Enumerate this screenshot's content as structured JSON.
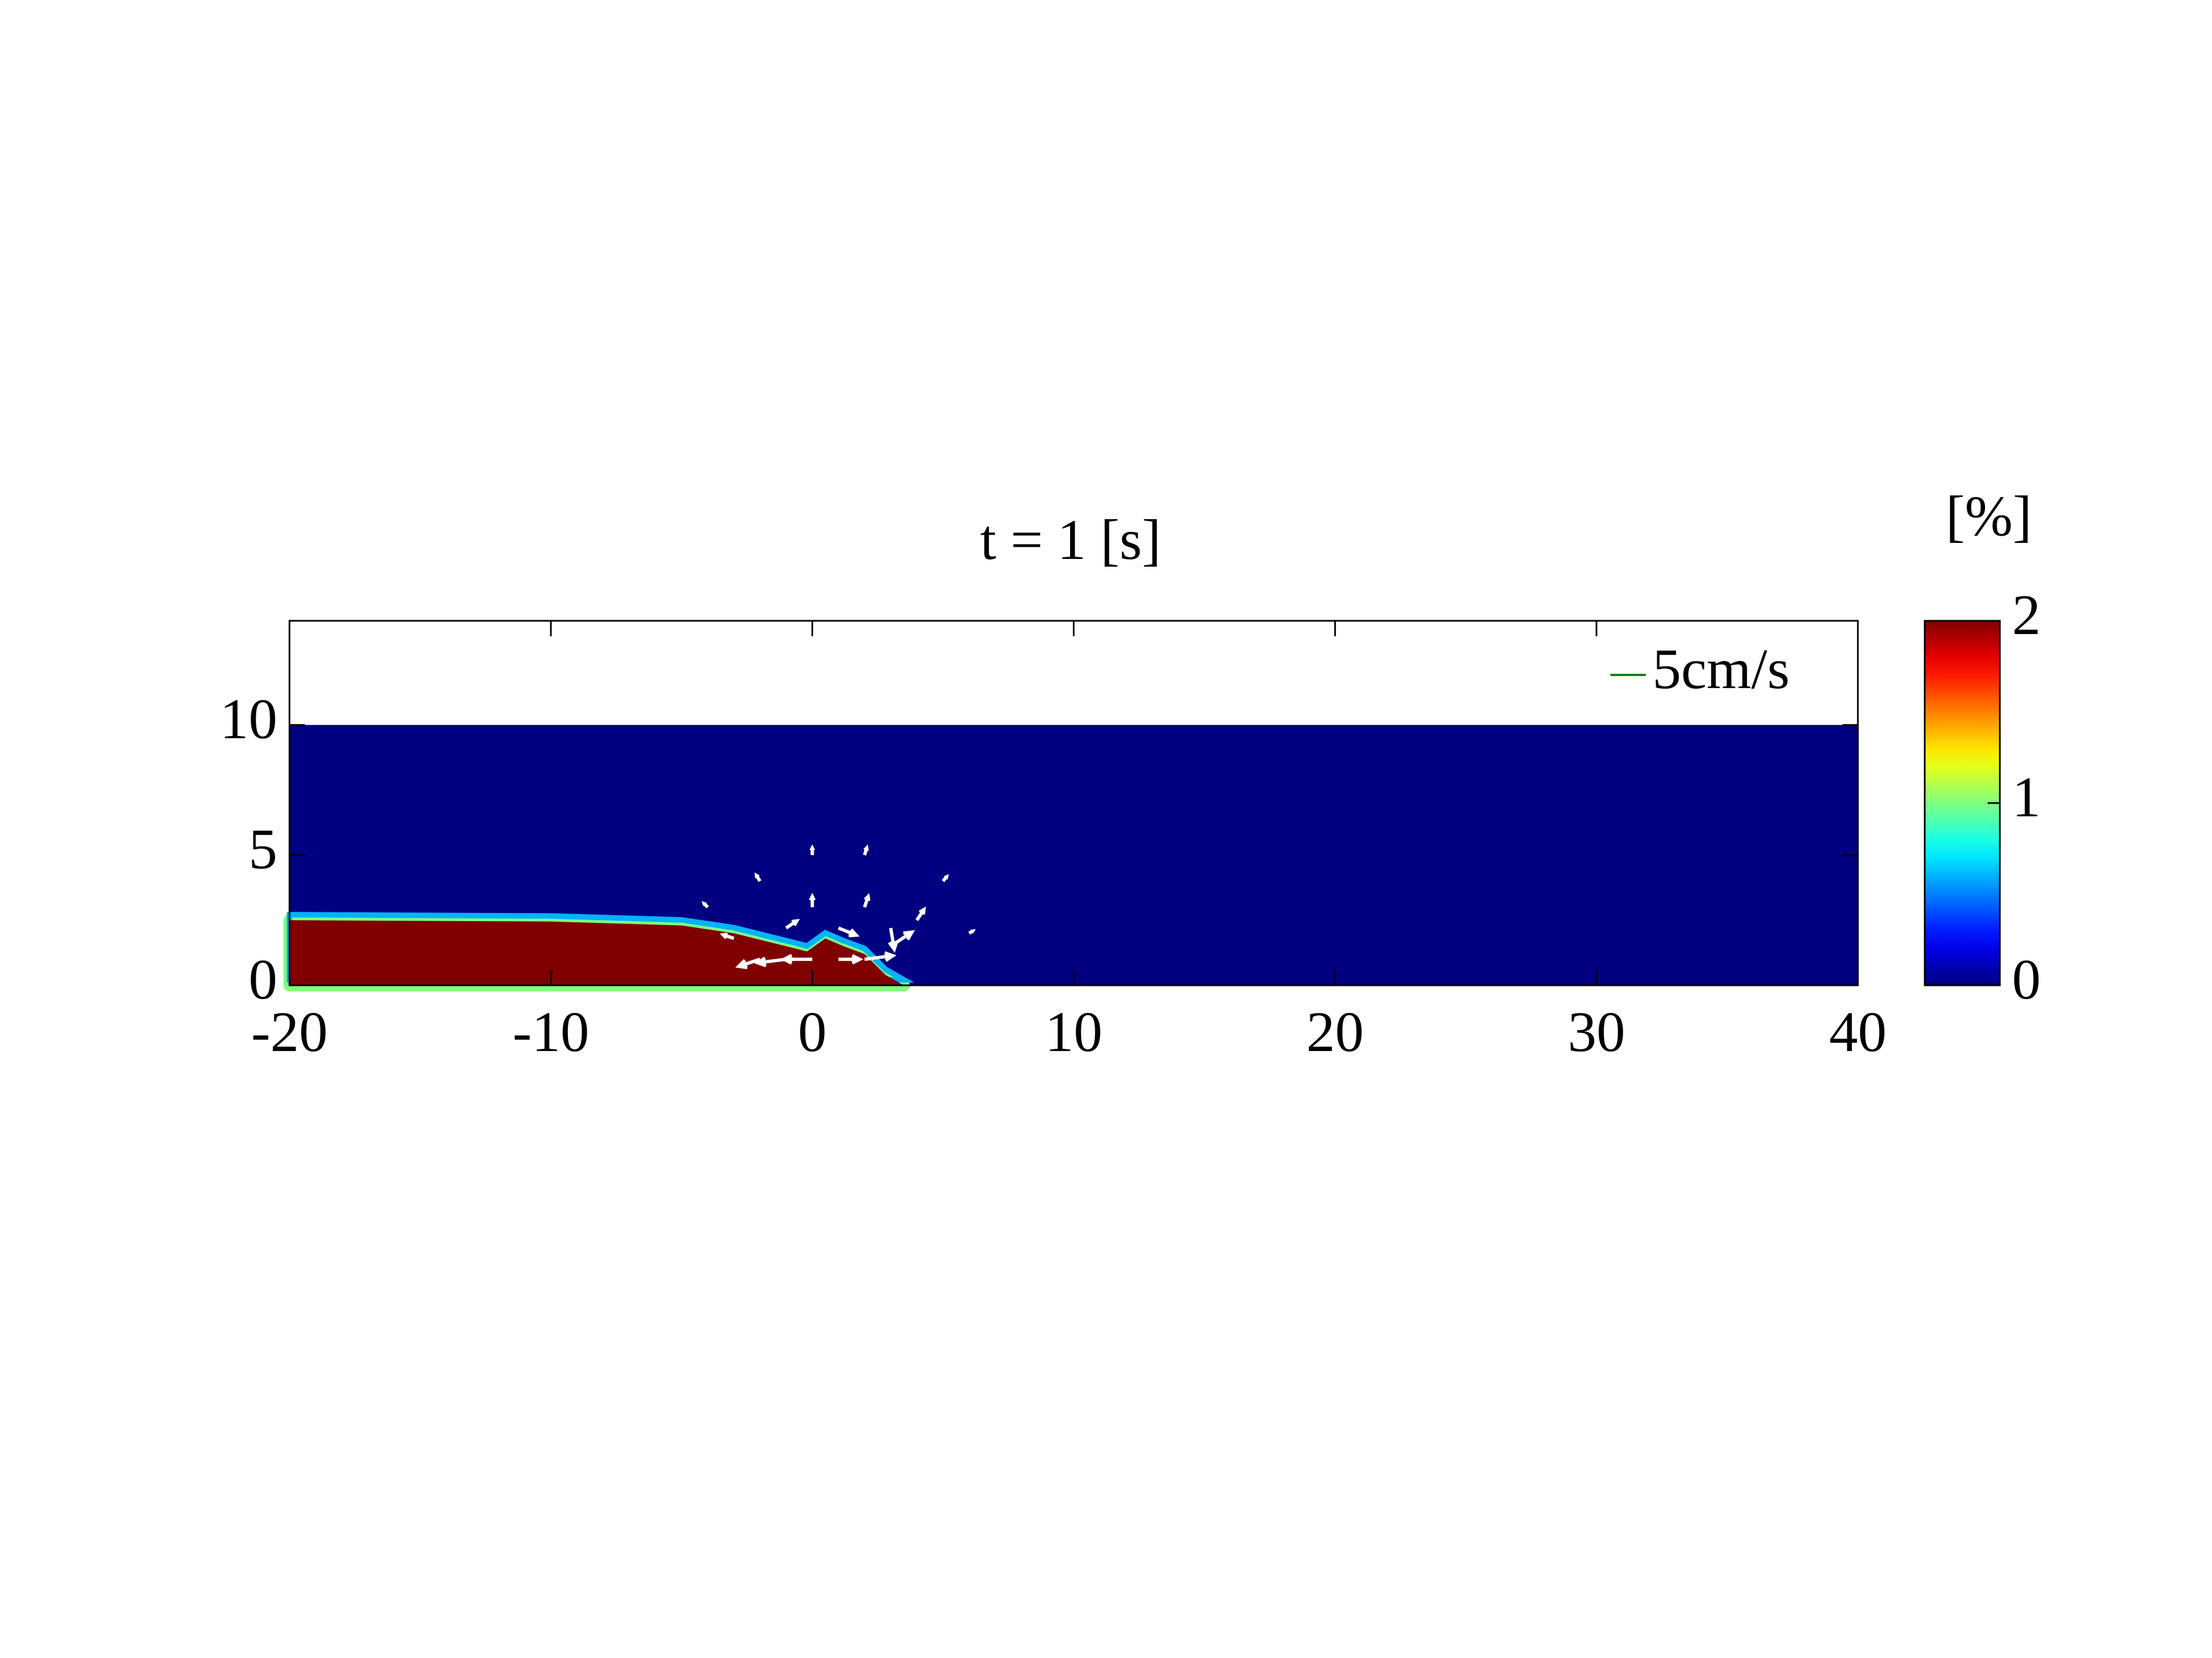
{
  "chart_data": {
    "type": "field",
    "title": "t = 1 [s]",
    "xlim": [
      -20,
      40
    ],
    "xticks": [
      -20,
      -10,
      0,
      10,
      20,
      30,
      40
    ],
    "ylim": [
      0,
      14
    ],
    "yticks": [
      0,
      5,
      10
    ],
    "colormap": "jet",
    "clim": [
      0,
      2
    ],
    "cticks": [
      0,
      1,
      2
    ],
    "clabel": "[%]",
    "ambient": {
      "value": 0,
      "depth": 10
    },
    "current": {
      "value": 2,
      "x": [
        -20,
        -10,
        -5,
        -3,
        -1,
        -0.2,
        0.5,
        1.2,
        2,
        2.8,
        3.5
      ],
      "height": [
        2.5,
        2.45,
        2.3,
        2.0,
        1.5,
        1.3,
        1.8,
        1.5,
        1.2,
        0.4,
        0
      ]
    },
    "quiver_key": {
      "label": "5cm/s",
      "speed": 5,
      "color": "#008000"
    },
    "vectors": {
      "x": [
        -2,
        -1,
        0,
        1,
        2,
        3,
        -3,
        -1,
        1,
        3,
        0,
        2,
        4,
        -2,
        0,
        2,
        5,
        -4,
        6
      ],
      "y": [
        1,
        1,
        1,
        1,
        1,
        1.5,
        1.8,
        2.2,
        2.2,
        2.2,
        3,
        3,
        2.5,
        4,
        5,
        5,
        4,
        3,
        2
      ],
      "u": [
        -3,
        -4,
        -4,
        3,
        4,
        3,
        -1.5,
        1.5,
        2.5,
        0.5,
        0,
        0.5,
        1,
        -0.5,
        0,
        0.3,
        0.5,
        -0.5,
        0.5
      ],
      "v": [
        -1,
        -0.5,
        0,
        0,
        0.5,
        2,
        0.5,
        1,
        -1,
        -3,
        1.5,
        1.5,
        1.5,
        0.8,
        1,
        1,
        0.6,
        0.5,
        0.3
      ]
    }
  }
}
